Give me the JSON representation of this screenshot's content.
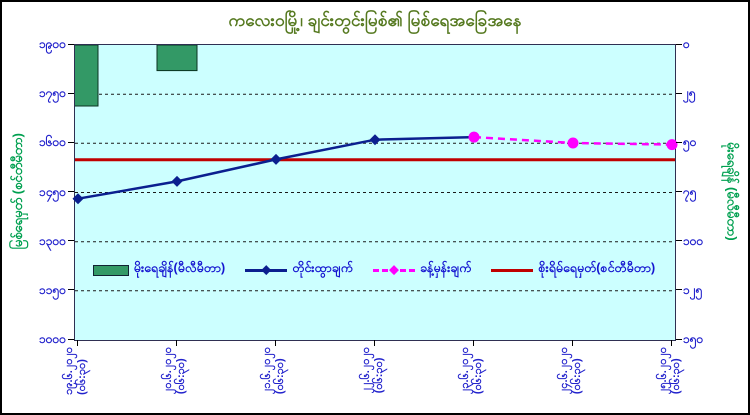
{
  "title": "ကလေးဝမြို့၊ ချင်းတွင်းမြစ်၏ မြစ်ရေအခြေအနေ",
  "colors": {
    "plot_bg": "#ccffff",
    "bar_fill": "#339966",
    "bar_stroke": "#0b3322",
    "measured_line": "#0b1f8f",
    "forecast_line": "#ff00ff",
    "danger_line": "#c00000",
    "grid": "#1a1a1a",
    "tick_label": "#2222cc",
    "axis_title": "#00a050",
    "title_text": "#55791f"
  },
  "chart_data": {
    "type": "combo",
    "title": "ကလေးဝမြို့၊ ချင်းတွင်းမြစ်၏ မြစ်ရေအခြေအနေ",
    "grid": "dashed",
    "legend_position": "bottom-inside",
    "x_labels": [
      {
        "date": "၁၉.၆.၂၀၂၀",
        "time": "(၀၆:၃၀)",
        "value": "19.6.2020 06:30"
      },
      {
        "date": "၂၀.၆.၂၀၂၀",
        "time": "(၀၆:၃၀)",
        "value": "20.6.2020 06:30"
      },
      {
        "date": "၂၁.၆.၂၀၂၀",
        "time": "(၀၆:၃၀)",
        "value": "21.6.2020 06:30"
      },
      {
        "date": "၂၂.၆.၂၀၂၀",
        "time": "(၀၆:၃၀)",
        "value": "22.6.2020 06:30"
      },
      {
        "date": "၂၃.၆.၂၀၂၀",
        "time": "(၀၆:၃၀)",
        "value": "23.6.2020 06:30"
      },
      {
        "date": "၂၄.၆.၂၀၂၀",
        "time": "(၀၆:၃၀)",
        "value": "24.6.2020 06:30"
      },
      {
        "date": "၂၅.၆.၂၀၂၀",
        "time": "(၀၆:၃၀)",
        "value": "25.6.2020 06:30"
      }
    ],
    "left_axis": {
      "title": "မြစ်ရေမှတ် (စင်တီမီတာ)",
      "min": 1000,
      "max": 1900,
      "step": 150,
      "tick_labels_top_to_bottom": [
        "၁၉၀၀",
        "၁၇၅၀",
        "၁၆၀၀",
        "၁၄၅၀",
        "၁၃၀၀",
        "၁၁၅၀",
        "၁၀၀၀"
      ]
    },
    "right_axis": {
      "title": "မိုးရေချိန် (မီလီမီတာ)",
      "min": 0,
      "max": 150,
      "step": 25,
      "reversed": true,
      "tick_labels_top_to_bottom": [
        "၀",
        "၂၅",
        "၅၀",
        "၇၅",
        "၁၀၀",
        "၁၂၅",
        "၁၅၀"
      ]
    },
    "series": [
      {
        "name": "မိုးရေချိန်(မီလီမီတာ)",
        "kind": "bar",
        "axis": "right",
        "legend_marker": "rect",
        "values": [
          31,
          13,
          0,
          0,
          0,
          0,
          0
        ]
      },
      {
        "name": "တိုင်းထွာချက်",
        "kind": "line",
        "axis": "left",
        "marker": "diamond",
        "legend_marker": "diamond",
        "values": [
          1431,
          1484,
          1551,
          1611,
          1619,
          null,
          null
        ]
      },
      {
        "name": "ခန့်မှန်းချက်",
        "kind": "line-dashed",
        "axis": "left",
        "marker": "circle",
        "legend_marker": "diamond",
        "values": [
          null,
          null,
          null,
          null,
          1619,
          1601,
          1596
        ]
      },
      {
        "name": "စိုးရိမ်ရေမှတ်(စင်တီမီတာ)",
        "kind": "hline",
        "axis": "left",
        "legend_marker": "line",
        "value": 1550
      }
    ]
  }
}
